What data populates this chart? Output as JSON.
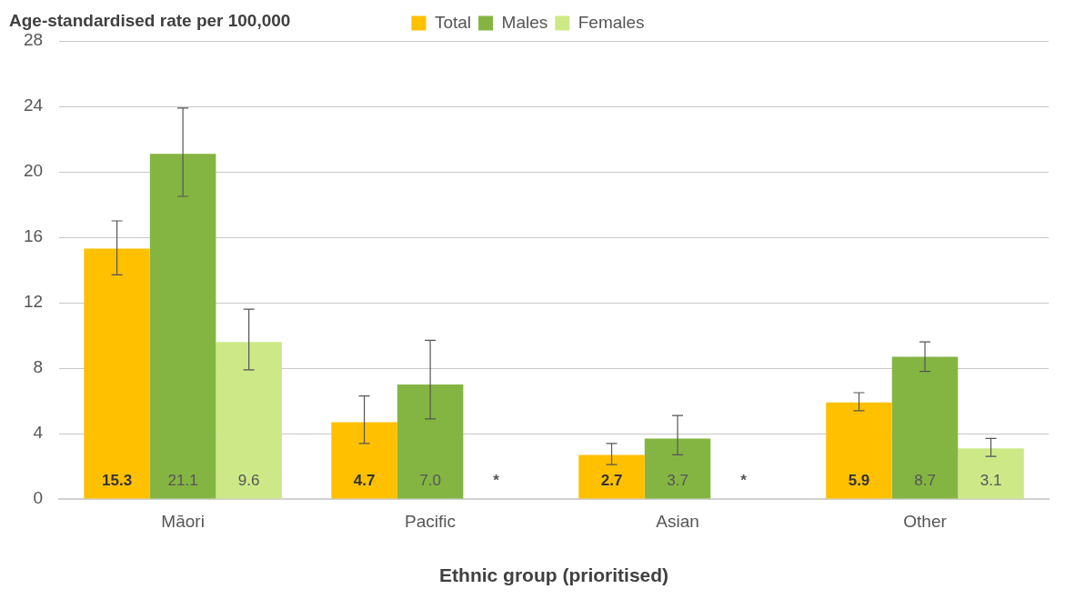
{
  "chart_data": {
    "type": "bar",
    "ylabel": "Age-standardised rate per 100,000",
    "xlabel": "Ethnic group (prioritised)",
    "categories": [
      "Māori",
      "Pacific",
      "Asian",
      "Other"
    ],
    "series": [
      {
        "name": "Total",
        "color": "#ffc000",
        "values": [
          15.3,
          4.7,
          2.7,
          5.9
        ],
        "errors": [
          [
            13.7,
            17.0
          ],
          [
            3.4,
            6.3
          ],
          [
            2.1,
            3.4
          ],
          [
            5.4,
            6.5
          ]
        ],
        "value_labels": [
          "15.3",
          "4.7",
          "2.7",
          "5.9"
        ]
      },
      {
        "name": "Males",
        "color": "#84b542",
        "values": [
          21.1,
          7.0,
          3.7,
          8.7
        ],
        "errors": [
          [
            18.5,
            23.9
          ],
          [
            4.9,
            9.7
          ],
          [
            2.7,
            5.1
          ],
          [
            7.8,
            9.6
          ]
        ],
        "value_labels": [
          "21.1",
          "7.0",
          "3.7",
          "8.7"
        ]
      },
      {
        "name": "Females",
        "color": "#cde987",
        "values": [
          9.6,
          null,
          null,
          3.1
        ],
        "errors": [
          [
            7.9,
            11.6
          ],
          null,
          null,
          [
            2.6,
            3.7
          ]
        ],
        "value_labels": [
          "9.6",
          "*",
          "*",
          "3.1"
        ]
      }
    ],
    "ylim": [
      0,
      28
    ],
    "yticks": [
      0,
      4,
      8,
      12,
      16,
      20,
      24,
      28
    ],
    "grid": "y",
    "legend": "top"
  }
}
